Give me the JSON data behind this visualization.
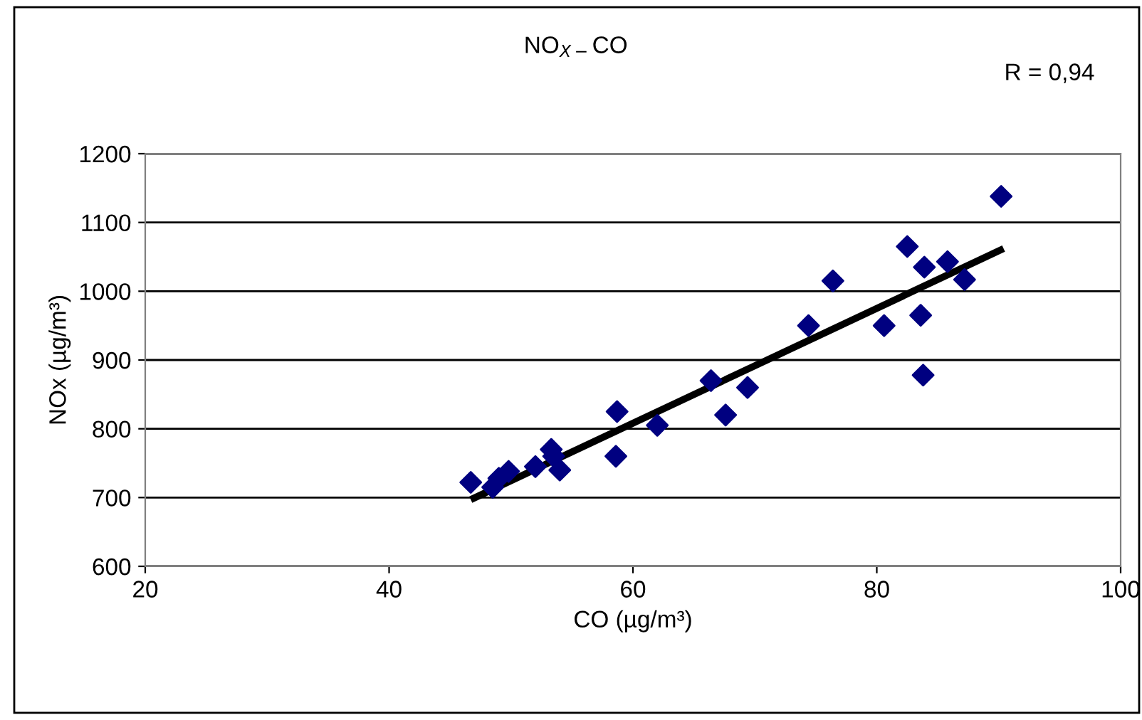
{
  "chart_data": {
    "type": "scatter",
    "title": "NO$_{X−}$CO",
    "xlabel": "CO (µg/m³)",
    "ylabel": "NOx (µg/m³)",
    "annotations": [
      "R = 0,94"
    ],
    "xlim": [
      20,
      100
    ],
    "xticks": [
      20,
      40,
      60,
      80,
      100
    ],
    "ylim": [
      600,
      1200
    ],
    "yticks": [
      600,
      700,
      800,
      900,
      1000,
      1100,
      1200
    ],
    "grid": "y",
    "legend": false,
    "series": [
      {
        "marker": "diamond",
        "color": "#000080",
        "x": [
          46.7,
          48.5,
          49.0,
          49.8,
          52.0,
          53.3,
          54.0,
          53.5,
          58.7,
          58.6,
          62.0,
          66.4,
          67.6,
          69.4,
          74.4,
          76.4,
          80.6,
          82.5,
          83.8,
          83.6,
          83.9,
          85.8,
          87.2,
          90.2
        ],
        "values": [
          722,
          715,
          728,
          738,
          745,
          770,
          740,
          760,
          825,
          760,
          805,
          870,
          820,
          860,
          950,
          1015,
          950,
          1065,
          878,
          965,
          1035,
          1043,
          1017,
          1138
        ]
      },
      {
        "type": "line",
        "marker": "none",
        "color": "#000000",
        "x": [
          46.7,
          90.4
        ],
        "values": [
          697,
          1062
        ]
      }
    ]
  }
}
